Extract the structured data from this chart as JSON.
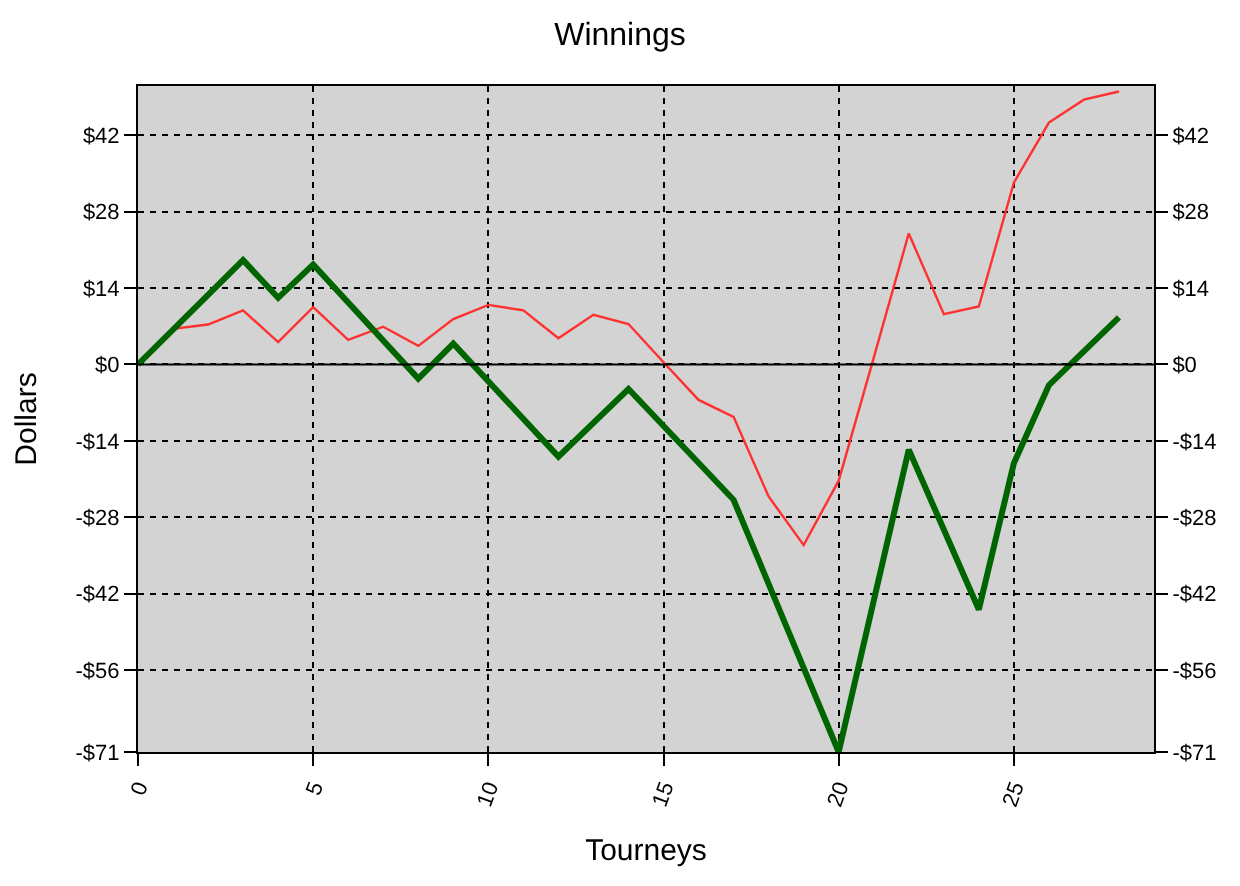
{
  "chart_data": {
    "type": "line",
    "title": "Winnings",
    "xlabel": "Tourneys",
    "ylabel": "Dollars",
    "xlim": [
      0,
      29
    ],
    "xticks": [
      0,
      5,
      10,
      15,
      20,
      25
    ],
    "ylim": [
      -71,
      51
    ],
    "yticks": [
      {
        "value": -71,
        "label": "-$71"
      },
      {
        "value": -56,
        "label": "-$56"
      },
      {
        "value": -42,
        "label": "-$42"
      },
      {
        "value": -28,
        "label": "-$28"
      },
      {
        "value": -14,
        "label": "-$14"
      },
      {
        "value": 0,
        "label": "$0"
      },
      {
        "value": 14,
        "label": "$14"
      },
      {
        "value": 28,
        "label": "$28"
      },
      {
        "value": 42,
        "label": "$42"
      }
    ],
    "y2lim": [
      -71,
      51
    ],
    "y2ticks": [
      {
        "value": -71,
        "label": "-$71"
      },
      {
        "value": -56,
        "label": "-$56"
      },
      {
        "value": -42,
        "label": "-$42"
      },
      {
        "value": -28,
        "label": "-$28"
      },
      {
        "value": -14,
        "label": "-$14"
      },
      {
        "value": 0,
        "label": "$0"
      },
      {
        "value": 14,
        "label": "$14"
      },
      {
        "value": 28,
        "label": "$28"
      },
      {
        "value": 42,
        "label": "$42"
      }
    ],
    "grid": true,
    "legend": false,
    "marker": "none",
    "line_style": "solid",
    "ref_lines": [
      {
        "axis": "y",
        "value": 0,
        "color": "#000000",
        "line_style": "solid"
      }
    ],
    "series": [
      {
        "color": "#ff3030",
        "x": [
          0,
          1,
          2,
          3,
          4,
          5,
          6,
          7,
          8,
          9,
          10,
          11,
          12,
          13,
          14,
          15,
          16,
          17,
          18,
          19,
          20,
          21,
          22,
          23,
          24,
          25,
          26,
          27,
          28
        ],
        "values": [
          0,
          6.5,
          7.3,
          9.9,
          4.1,
          10.5,
          4.5,
          6.9,
          3.4,
          8.3,
          10.9,
          9.9,
          4.8,
          9.1,
          7.4,
          0.4,
          -6.5,
          -9.6,
          -24.2,
          -33.1,
          -21.3,
          1.2,
          24.0,
          9.2,
          10.6,
          33.3,
          44.3,
          48.5,
          50
        ]
      },
      {
        "color": "#006400",
        "x": [
          0,
          3,
          4,
          5,
          8,
          9,
          12,
          14,
          17,
          20,
          22,
          24,
          25,
          26,
          28
        ],
        "values": [
          0,
          19.1,
          12.2,
          18.3,
          -2.6,
          3.8,
          -16.9,
          -4.5,
          -24.8,
          -71,
          -15.6,
          -44.9,
          -18.1,
          -3.8,
          8.6
        ]
      }
    ]
  }
}
